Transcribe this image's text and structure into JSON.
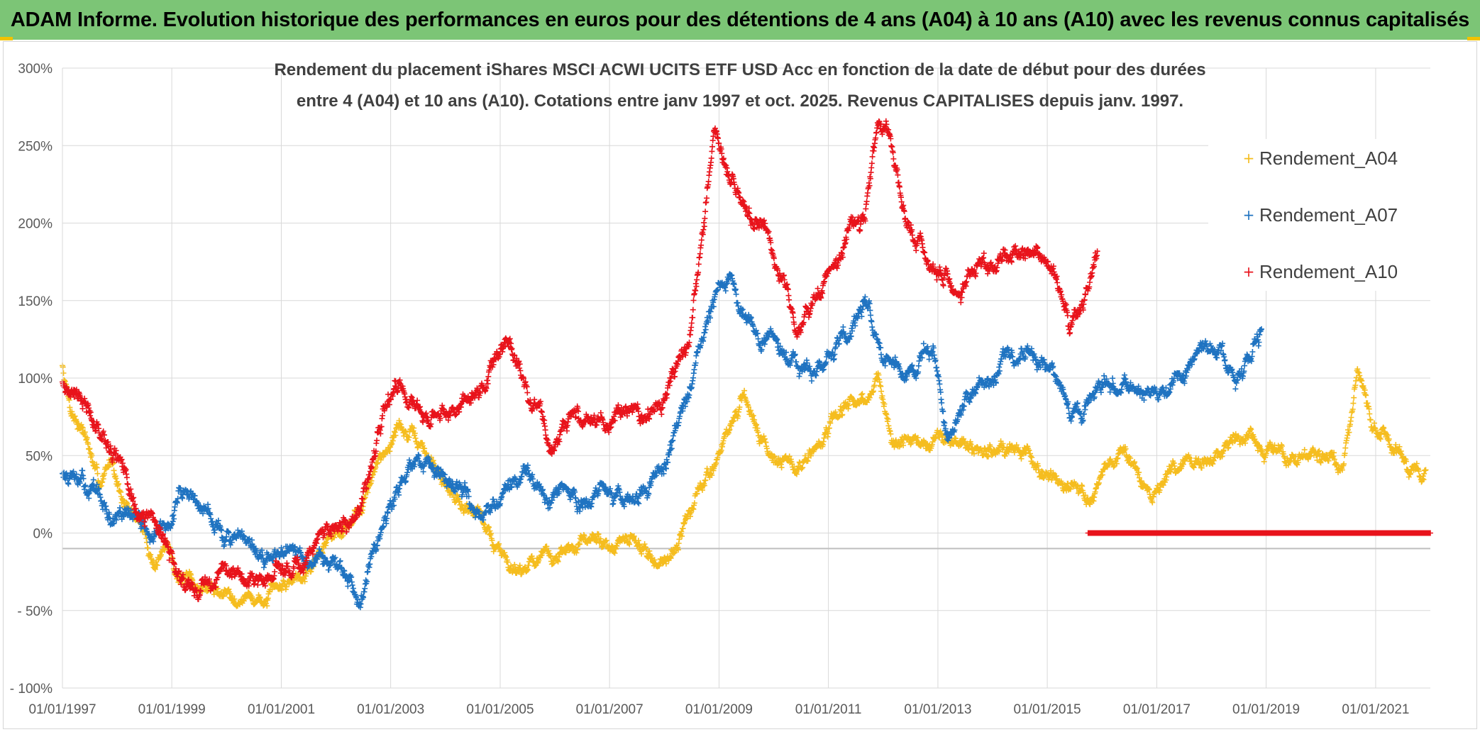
{
  "header": {
    "title": "ADAM Informe. Evolution historique des performances en euros pour des détentions de 4 ans (A04) à 10 ans (A10) avec les revenus connus capitalisés"
  },
  "colors": {
    "header_bg": "#7cc576",
    "A04": "#f5bd1f",
    "A07": "#1f73c1",
    "A10": "#e8131b",
    "grid": "#d9d9d9",
    "zero_line": "#bfbfbf"
  },
  "chart_data": {
    "type": "scatter",
    "title": [
      "Rendement du placement iShares MSCI ACWI UCITS ETF USD Acc en fonction de la date de début pour des durées",
      "entre 4 (A04) et 10 ans (A10). Cotations entre janv 1997 et oct. 2025. Revenus CAPITALISES depuis janv. 1997."
    ],
    "xlabel": "",
    "ylabel": "",
    "x_axis": {
      "type": "date",
      "range": [
        "1997-01-01",
        "2022-01-01"
      ],
      "tick_labels": [
        "01/01/1997",
        "01/01/1999",
        "01/01/2001",
        "01/01/2003",
        "01/01/2005",
        "01/01/2007",
        "01/01/2009",
        "01/01/2011",
        "01/01/2013",
        "01/01/2015",
        "01/01/2017",
        "01/01/2019",
        "01/01/2021"
      ]
    },
    "y_axis": {
      "unit": "%",
      "range": [
        -100,
        300
      ],
      "ticks": [
        300,
        250,
        200,
        150,
        100,
        50,
        0,
        -50,
        -100
      ],
      "tick_labels": [
        "300%",
        "250%",
        "200%",
        "150%",
        "100%",
        "50%",
        "0%",
        "- 50%",
        "- 100%"
      ]
    },
    "grid": true,
    "legend_position": "top-right",
    "marker": "+",
    "series": [
      {
        "name": "Rendement_A04",
        "color": "#f5bd1f",
        "x": [
          "1997-01",
          "1997-03",
          "1997-06",
          "1997-09",
          "1997-12",
          "1998-03",
          "1998-06",
          "1998-09",
          "1998-12",
          "1999-03",
          "1999-06",
          "1999-09",
          "1999-12",
          "2000-03",
          "2000-06",
          "2000-09",
          "2000-12",
          "2001-03",
          "2001-06",
          "2001-09",
          "2001-12",
          "2002-03",
          "2002-06",
          "2002-09",
          "2002-12",
          "2003-03",
          "2003-06",
          "2003-09",
          "2003-12",
          "2004-03",
          "2004-06",
          "2004-09",
          "2004-12",
          "2005-03",
          "2005-06",
          "2005-09",
          "2005-12",
          "2006-03",
          "2006-06",
          "2006-09",
          "2006-12",
          "2007-03",
          "2007-06",
          "2007-09",
          "2007-12",
          "2008-03",
          "2008-06",
          "2008-09",
          "2008-12",
          "2009-03",
          "2009-06",
          "2009-09",
          "2009-12",
          "2010-03",
          "2010-06",
          "2010-09",
          "2010-12",
          "2011-03",
          "2011-06",
          "2011-09",
          "2011-12",
          "2012-03",
          "2012-06",
          "2012-09",
          "2012-12",
          "2013-03",
          "2013-06",
          "2013-09",
          "2013-12",
          "2014-03",
          "2014-06",
          "2014-09",
          "2014-12",
          "2015-03",
          "2015-06",
          "2015-09",
          "2015-12",
          "2016-03",
          "2016-06",
          "2016-09",
          "2016-12",
          "2017-03",
          "2017-06",
          "2017-09",
          "2017-12",
          "2018-03",
          "2018-06",
          "2018-09",
          "2018-12",
          "2019-03",
          "2019-06",
          "2019-09",
          "2019-12",
          "2020-03",
          "2020-06",
          "2020-09",
          "2020-12",
          "2021-03",
          "2021-06",
          "2021-09",
          "2021-12"
        ],
        "y": [
          108,
          80,
          65,
          30,
          48,
          15,
          8,
          -20,
          -8,
          -30,
          -35,
          -36,
          -38,
          -39,
          -42,
          -44,
          -38,
          -30,
          -22,
          -15,
          0,
          5,
          15,
          35,
          55,
          70,
          60,
          50,
          35,
          25,
          18,
          12,
          -10,
          -18,
          -22,
          -15,
          -18,
          -12,
          -10,
          -5,
          -5,
          -8,
          -5,
          -12,
          -20,
          -10,
          10,
          28,
          45,
          65,
          85,
          70,
          55,
          48,
          40,
          50,
          58,
          75,
          85,
          80,
          105,
          55,
          60,
          55,
          60,
          62,
          58,
          55,
          52,
          55,
          50,
          48,
          40,
          35,
          28,
          22,
          30,
          45,
          55,
          35,
          20,
          38,
          40,
          45,
          50,
          55,
          60,
          58,
          55,
          50,
          48,
          52,
          50,
          45,
          40,
          100,
          70,
          65,
          50,
          42,
          40
        ],
        "points": 2600,
        "jitter": 5,
        "seed": 7
      },
      {
        "name": "Rendement_A07",
        "color": "#1f73c1",
        "x": [
          "1997-01",
          "1997-03",
          "1997-06",
          "1997-09",
          "1997-12",
          "1998-03",
          "1998-06",
          "1998-09",
          "1998-12",
          "1999-03",
          "1999-06",
          "1999-09",
          "1999-12",
          "2000-03",
          "2000-06",
          "2000-09",
          "2000-12",
          "2001-03",
          "2001-06",
          "2001-09",
          "2001-12",
          "2002-03",
          "2002-06",
          "2002-09",
          "2002-12",
          "2003-03",
          "2003-06",
          "2003-09",
          "2003-12",
          "2004-03",
          "2004-06",
          "2004-09",
          "2004-12",
          "2005-03",
          "2005-06",
          "2005-09",
          "2005-12",
          "2006-03",
          "2006-06",
          "2006-09",
          "2006-12",
          "2007-03",
          "2007-06",
          "2007-09",
          "2007-12",
          "2008-03",
          "2008-06",
          "2008-09",
          "2008-12",
          "2009-03",
          "2009-06",
          "2009-09",
          "2009-12",
          "2010-03",
          "2010-06",
          "2010-09",
          "2010-12",
          "2011-03",
          "2011-06",
          "2011-09",
          "2011-12",
          "2012-03",
          "2012-06",
          "2012-09",
          "2012-12",
          "2013-03",
          "2013-06",
          "2013-09",
          "2013-12",
          "2014-03",
          "2014-06",
          "2014-09",
          "2014-12",
          "2015-03",
          "2015-06",
          "2015-09",
          "2015-12",
          "2016-03",
          "2016-06",
          "2016-09",
          "2016-12",
          "2017-03",
          "2017-06",
          "2017-09",
          "2017-12",
          "2018-03",
          "2018-06",
          "2018-09",
          "2018-12"
        ],
        "y": [
          40,
          32,
          30,
          25,
          5,
          12,
          8,
          -5,
          2,
          30,
          20,
          15,
          0,
          -5,
          -12,
          -15,
          -18,
          -15,
          -20,
          -10,
          -20,
          -28,
          -42,
          -5,
          10,
          30,
          50,
          40,
          30,
          28,
          20,
          15,
          22,
          30,
          35,
          28,
          20,
          25,
          18,
          22,
          28,
          25,
          22,
          30,
          40,
          60,
          90,
          120,
          150,
          160,
          140,
          130,
          125,
          120,
          110,
          105,
          110,
          120,
          130,
          150,
          125,
          110,
          100,
          115,
          120,
          60,
          80,
          90,
          100,
          110,
          115,
          120,
          110,
          100,
          80,
          75,
          90,
          95,
          100,
          88,
          90,
          92,
          100,
          110,
          115,
          120,
          95,
          110,
          130
        ],
        "points": 2400,
        "jitter": 6,
        "seed": 13
      },
      {
        "name": "Rendement_A10",
        "color": "#e8131b",
        "x": [
          "1997-01",
          "1997-03",
          "1997-06",
          "1997-09",
          "1997-12",
          "1998-03",
          "1998-06",
          "1998-09",
          "1998-12",
          "1999-03",
          "1999-06",
          "1999-09",
          "1999-12",
          "2000-03",
          "2000-06",
          "2000-09",
          "2000-12",
          "2001-03",
          "2001-06",
          "2001-09",
          "2001-12",
          "2002-03",
          "2002-06",
          "2002-09",
          "2002-12",
          "2003-03",
          "2003-06",
          "2003-09",
          "2003-12",
          "2004-03",
          "2004-06",
          "2004-09",
          "2004-12",
          "2005-03",
          "2005-06",
          "2005-09",
          "2005-12",
          "2006-03",
          "2006-06",
          "2006-09",
          "2006-12",
          "2007-03",
          "2007-06",
          "2007-09",
          "2007-12",
          "2008-03",
          "2008-06",
          "2008-09",
          "2008-12",
          "2009-03",
          "2009-06",
          "2009-09",
          "2009-12",
          "2010-03",
          "2010-06",
          "2010-09",
          "2010-12",
          "2011-03",
          "2011-06",
          "2011-09",
          "2011-12",
          "2012-03",
          "2012-06",
          "2012-09",
          "2012-12",
          "2013-03",
          "2013-06",
          "2013-09",
          "2013-12",
          "2014-03",
          "2014-06",
          "2014-09",
          "2014-12",
          "2015-03",
          "2015-06",
          "2015-09",
          "2015-12"
        ],
        "y": [
          100,
          90,
          85,
          70,
          55,
          35,
          10,
          5,
          -10,
          -30,
          -35,
          -30,
          -25,
          -28,
          -28,
          -30,
          -25,
          -22,
          -15,
          -5,
          0,
          5,
          10,
          50,
          80,
          95,
          85,
          70,
          75,
          80,
          90,
          95,
          110,
          125,
          100,
          80,
          55,
          70,
          80,
          75,
          70,
          75,
          80,
          70,
          80,
          100,
          120,
          180,
          260,
          230,
          215,
          200,
          190,
          165,
          130,
          150,
          165,
          170,
          200,
          200,
          265,
          250,
          200,
          185,
          175,
          165,
          155,
          170,
          165,
          175,
          180,
          180,
          175,
          160,
          130,
          150,
          180
        ],
        "points": 2200,
        "jitter": 6,
        "seed": 21
      },
      {
        "name": "Rendement_A10",
        "color": "#e8131b",
        "x": [
          "2015-10",
          "2022-01"
        ],
        "y": [
          0,
          0
        ],
        "points": 600,
        "jitter": 0,
        "seed": 33
      }
    ]
  }
}
